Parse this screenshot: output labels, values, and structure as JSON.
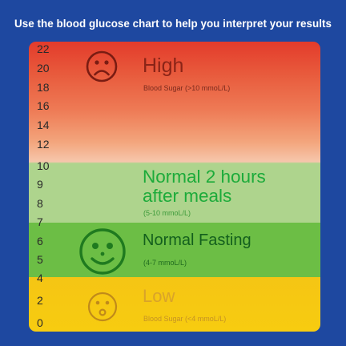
{
  "headline": "Use the blood glucose chart to help you interpret your results",
  "chart_data": {
    "type": "table",
    "title": "Use the blood glucose chart to help you interpret your results",
    "ylabel": "",
    "ylim": [
      0,
      22
    ],
    "ticks": [
      "22",
      "20",
      "18",
      "16",
      "14",
      "12",
      "10",
      "9",
      "8",
      "7",
      "6",
      "5",
      "4",
      "2",
      "0"
    ],
    "zones": [
      {
        "title": "High",
        "subtitle": "Blood Sugar (>10 mmoL/L)",
        "min": 10,
        "max": 22,
        "color": "#e33b2b",
        "face": "sad-face-icon"
      },
      {
        "title_lines": [
          "Normal 2 hours",
          "after meals"
        ],
        "subtitle": "(5-10 mmoL/L)",
        "min": 5,
        "max": 10,
        "color": "#aed48d",
        "face": ""
      },
      {
        "title": "Normal Fasting",
        "subtitle": "(4-7 mmoL/L)",
        "min": 4,
        "max": 7,
        "color": "#6cbe45",
        "face": "happy-face-icon"
      },
      {
        "title": "Low",
        "subtitle": "Blood Sugar (<4 mmoL/L)",
        "min": 0,
        "max": 4,
        "color": "#f5c514",
        "face": "worried-face-icon"
      }
    ]
  }
}
